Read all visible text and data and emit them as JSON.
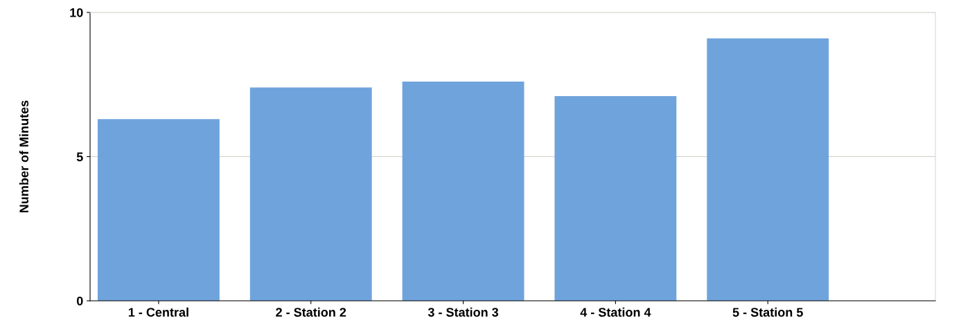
{
  "chart_data": {
    "type": "bar",
    "ylabel": "Number of Minutes",
    "categories": [
      "1 - Central",
      "2 - Station 2",
      "3 - Station 3",
      "4 - Station 4",
      "5 - Station 5"
    ],
    "values": [
      6.3,
      7.4,
      7.6,
      7.1,
      9.1
    ],
    "color": "#6fa3dc",
    "ylim": [
      0,
      10
    ],
    "yticks": [
      0,
      5,
      10
    ],
    "grid": "y"
  }
}
